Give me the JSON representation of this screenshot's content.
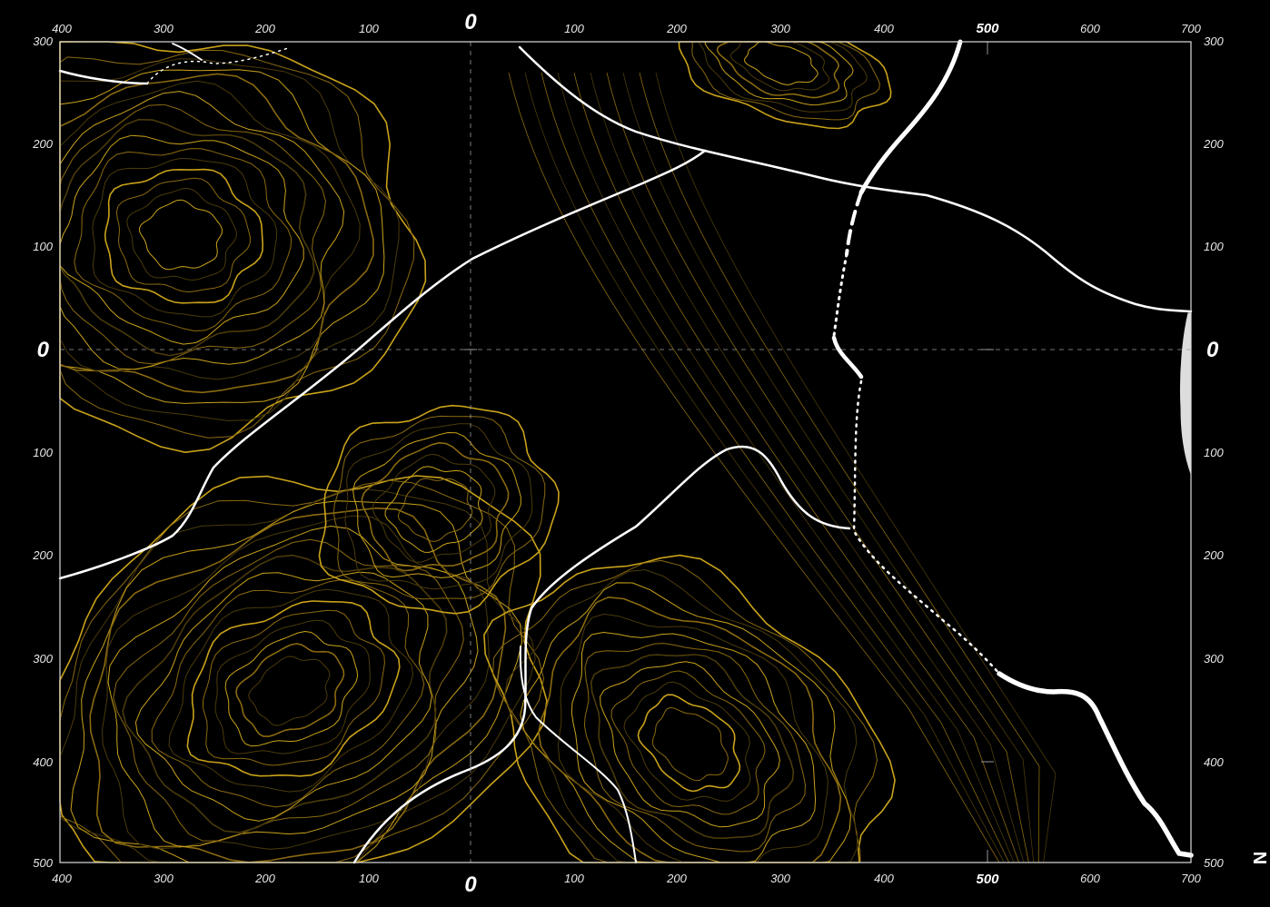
{
  "map": {
    "background": "#000000",
    "colors": {
      "contour_bright": "#c9a21a",
      "contour_mid": "#8a6a10",
      "contour_dim": "#4a3a0a",
      "road": "#ffffff",
      "grid": "#9a9a9a"
    },
    "axes": {
      "top": [
        "400",
        "300",
        "200",
        "100",
        "0",
        "100",
        "200",
        "300",
        "400",
        "500",
        "600",
        "700"
      ],
      "bottom": [
        "400",
        "300",
        "200",
        "100",
        "0",
        "100",
        "200",
        "300",
        "400",
        "500",
        "600",
        "700"
      ],
      "left": [
        "300",
        "200",
        "100",
        "0",
        "100",
        "200",
        "300",
        "400",
        "500"
      ],
      "right": [
        "300",
        "200",
        "100",
        "0",
        "100",
        "200",
        "300",
        "400",
        "500"
      ]
    },
    "north_label": "N",
    "icons": {
      "north_arrow": "north-label-icon"
    }
  }
}
